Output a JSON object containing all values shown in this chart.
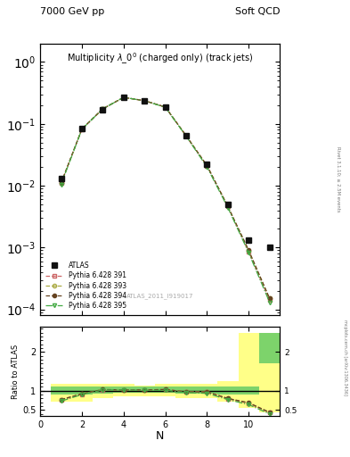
{
  "title_top_left": "7000 GeV pp",
  "title_top_right": "Soft QCD",
  "main_title": "Multiplicity $\\lambda\\_0^0$ (charged only) (track jets)",
  "watermark": "ATLAS_2011_I919017",
  "right_label": "Rivet 3.1.10; ≥ 2.5M events",
  "url_label": "mcplots.cern.ch [arXiv:1306.3436]",
  "xlabel": "N",
  "ylabel_ratio": "Ratio to ATLAS",
  "N_values": [
    1,
    2,
    3,
    4,
    5,
    6,
    7,
    8,
    9,
    10,
    11
  ],
  "atlas_y": [
    0.013,
    0.085,
    0.17,
    0.27,
    0.235,
    0.185,
    0.065,
    0.022,
    0.005,
    0.0013,
    0.001
  ],
  "pythia_391_y": [
    0.011,
    0.082,
    0.175,
    0.268,
    0.237,
    0.187,
    0.064,
    0.021,
    0.0046,
    0.00085,
    0.00014
  ],
  "pythia_393_y": [
    0.011,
    0.083,
    0.175,
    0.268,
    0.237,
    0.187,
    0.064,
    0.021,
    0.0046,
    0.00088,
    0.00015
  ],
  "pythia_394_y": [
    0.011,
    0.083,
    0.175,
    0.268,
    0.237,
    0.187,
    0.064,
    0.021,
    0.0046,
    0.0009,
    0.00015
  ],
  "pythia_395_y": [
    0.0105,
    0.082,
    0.175,
    0.268,
    0.236,
    0.185,
    0.063,
    0.02,
    0.0044,
    0.00082,
    0.00013
  ],
  "ratio_391": [
    0.76,
    0.91,
    1.02,
    1.02,
    1.02,
    1.03,
    0.97,
    0.97,
    0.79,
    0.67,
    0.43
  ],
  "ratio_393": [
    0.77,
    0.92,
    1.03,
    1.02,
    1.02,
    1.03,
    0.97,
    0.97,
    0.8,
    0.68,
    0.44
  ],
  "ratio_394": [
    0.77,
    0.92,
    1.03,
    1.02,
    1.02,
    1.03,
    0.97,
    0.97,
    0.8,
    0.69,
    0.44
  ],
  "ratio_395": [
    0.73,
    0.9,
    1.02,
    1.02,
    1.01,
    1.01,
    0.95,
    0.93,
    0.77,
    0.64,
    0.4
  ],
  "band_x": [
    0.5,
    1.5,
    2.5,
    3.5,
    4.5,
    5.5,
    6.5,
    7.5,
    8.5,
    9.5,
    10.5,
    11.5
  ],
  "band_yellow_lo": [
    0.72,
    0.72,
    0.8,
    0.86,
    0.86,
    0.86,
    0.8,
    0.8,
    0.72,
    0.55,
    0.45,
    0.45
  ],
  "band_yellow_hi": [
    1.18,
    1.18,
    1.18,
    1.18,
    1.14,
    1.18,
    1.18,
    1.18,
    1.25,
    2.5,
    2.5,
    2.5
  ],
  "band_green_lo": [
    0.9,
    0.9,
    0.93,
    0.95,
    0.95,
    0.95,
    0.92,
    0.92,
    0.9,
    0.9,
    1.7,
    1.7
  ],
  "band_green_hi": [
    1.1,
    1.1,
    1.1,
    1.1,
    1.1,
    1.1,
    1.1,
    1.1,
    1.1,
    1.1,
    2.5,
    2.5
  ],
  "color_391": "#cc6666",
  "color_393": "#aaaa44",
  "color_394": "#664422",
  "color_395": "#44aa44",
  "color_atlas": "#111111",
  "ylim_main": [
    8e-05,
    2.0
  ],
  "ylim_ratio": [
    0.35,
    2.65
  ],
  "xlim": [
    0,
    11.5
  ]
}
